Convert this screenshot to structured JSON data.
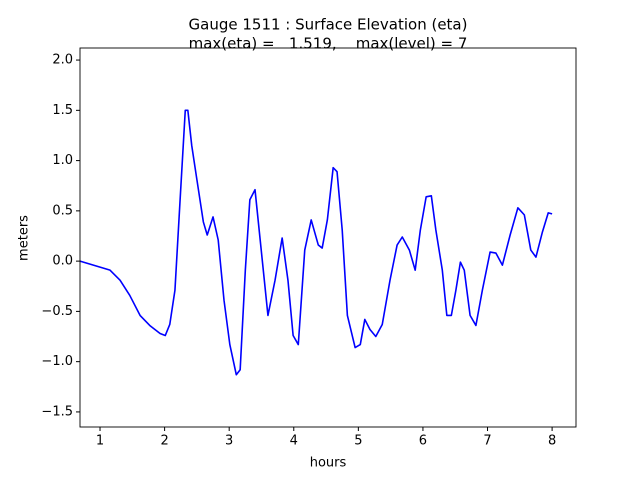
{
  "chart_data": {
    "type": "line",
    "title": [
      "Gauge 1511 : Surface Elevation (eta)",
      "max(eta) =   1.519,    max(level) = 7"
    ],
    "xlabel": "hours",
    "ylabel": "meters",
    "x": [
      0.69,
      1.0,
      1.155,
      1.31,
      1.46,
      1.62,
      1.77,
      1.93,
      2.01,
      2.08,
      2.16,
      2.24,
      2.32,
      2.36,
      2.42,
      2.5,
      2.6,
      2.66,
      2.75,
      2.83,
      2.92,
      3.01,
      3.11,
      3.17,
      3.25,
      3.32,
      3.4,
      3.48,
      3.6,
      3.71,
      3.82,
      3.91,
      3.99,
      4.07,
      4.17,
      4.27,
      4.38,
      4.44,
      4.52,
      4.61,
      4.67,
      4.75,
      4.83,
      4.95,
      5.03,
      5.1,
      5.18,
      5.27,
      5.37,
      5.49,
      5.6,
      5.68,
      5.79,
      5.88,
      5.96,
      6.05,
      6.13,
      6.2,
      6.3,
      6.37,
      6.44,
      6.51,
      6.58,
      6.64,
      6.73,
      6.82,
      6.92,
      7.04,
      7.13,
      7.23,
      7.35,
      7.47,
      7.57,
      7.67,
      7.75,
      7.85,
      7.94,
      8.0
    ],
    "series": [
      {
        "name": "eta",
        "color": "#0000ff",
        "values": [
          0.0,
          -0.06,
          -0.09,
          -0.19,
          -0.34,
          -0.54,
          -0.64,
          -0.72,
          -0.74,
          -0.63,
          -0.29,
          0.61,
          1.5,
          1.5,
          1.15,
          0.81,
          0.39,
          0.26,
          0.44,
          0.21,
          -0.39,
          -0.83,
          -1.13,
          -1.08,
          -0.09,
          0.61,
          0.71,
          0.21,
          -0.54,
          -0.19,
          0.23,
          -0.19,
          -0.74,
          -0.83,
          0.11,
          0.41,
          0.16,
          0.13,
          0.41,
          0.93,
          0.89,
          0.31,
          -0.54,
          -0.86,
          -0.83,
          -0.58,
          -0.68,
          -0.75,
          -0.63,
          -0.19,
          0.16,
          0.24,
          0.11,
          -0.09,
          0.31,
          0.64,
          0.65,
          0.31,
          -0.09,
          -0.54,
          -0.54,
          -0.29,
          -0.01,
          -0.09,
          -0.54,
          -0.64,
          -0.29,
          0.09,
          0.08,
          -0.04,
          0.26,
          0.53,
          0.46,
          0.11,
          0.04,
          0.29,
          0.48,
          0.47
        ]
      }
    ],
    "xlim": [
      0.69,
      8.37
    ],
    "ylim": [
      -1.65,
      2.12
    ],
    "xticks": [
      1,
      2,
      3,
      4,
      5,
      6,
      7,
      8
    ],
    "yticks": [
      {
        "value": -1.5,
        "label": "−1.5"
      },
      {
        "value": -1.0,
        "label": "−1.0"
      },
      {
        "value": -0.5,
        "label": "−0.5"
      },
      {
        "value": 0.0,
        "label": "0.0"
      },
      0.5,
      {
        "value": 1.0,
        "label": "1.0"
      },
      1.5,
      {
        "value": 2.0,
        "label": "2.0"
      }
    ],
    "grid": false
  }
}
